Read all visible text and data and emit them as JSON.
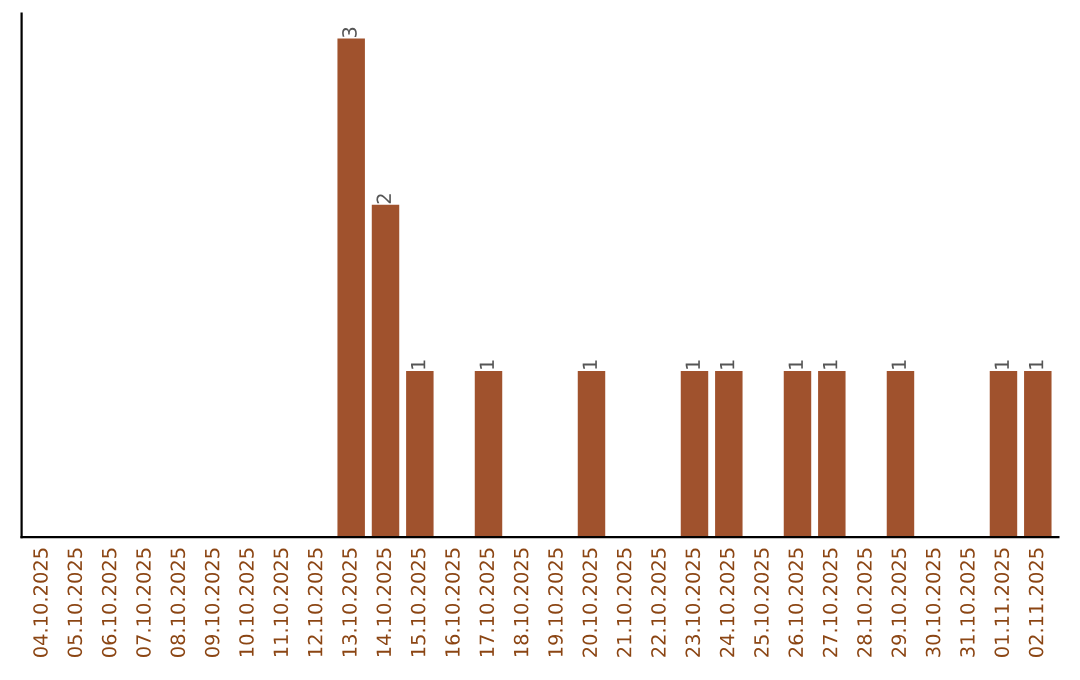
{
  "chart_data": {
    "type": "bar",
    "categories": [
      "04.10.2025",
      "05.10.2025",
      "06.10.2025",
      "07.10.2025",
      "08.10.2025",
      "09.10.2025",
      "10.10.2025",
      "11.10.2025",
      "12.10.2025",
      "13.10.2025",
      "14.10.2025",
      "15.10.2025",
      "16.10.2025",
      "17.10.2025",
      "18.10.2025",
      "19.10.2025",
      "20.10.2025",
      "21.10.2025",
      "22.10.2025",
      "23.10.2025",
      "24.10.2025",
      "25.10.2025",
      "26.10.2025",
      "27.10.2025",
      "28.10.2025",
      "29.10.2025",
      "30.10.2025",
      "31.10.2025",
      "01.11.2025",
      "02.11.2025"
    ],
    "values": [
      0,
      0,
      0,
      0,
      0,
      0,
      0,
      0,
      0,
      3,
      2,
      1,
      0,
      1,
      0,
      0,
      1,
      0,
      0,
      1,
      1,
      0,
      1,
      1,
      0,
      1,
      0,
      0,
      1,
      1
    ],
    "value_labels": [
      null,
      null,
      null,
      null,
      null,
      null,
      null,
      null,
      null,
      "3",
      "2",
      "1",
      null,
      "1",
      null,
      null,
      "1",
      null,
      null,
      "1",
      "1",
      null,
      "1",
      "1",
      null,
      "1",
      null,
      null,
      "1",
      "1"
    ],
    "color": "#a0522d",
    "tick_labels": "x",
    "grid": false
  }
}
